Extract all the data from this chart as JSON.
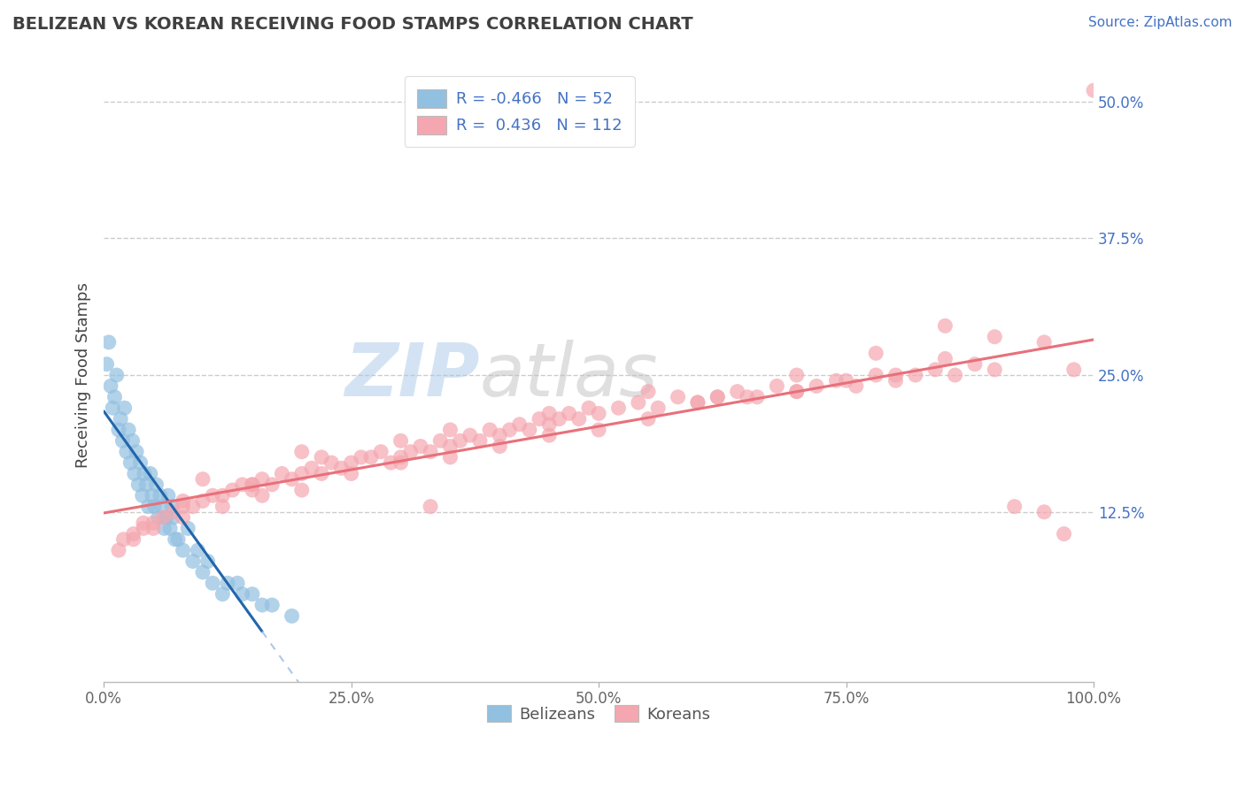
{
  "title": "BELIZEAN VS KOREAN RECEIVING FOOD STAMPS CORRELATION CHART",
  "source": "Source: ZipAtlas.com",
  "ylabel": "Receiving Food Stamps",
  "xlim": [
    0,
    100
  ],
  "ylim": [
    -3,
    53
  ],
  "ytick_vals": [
    12.5,
    25.0,
    37.5,
    50.0
  ],
  "ytick_labels": [
    "12.5%",
    "25.0%",
    "37.5%",
    "50.0%"
  ],
  "xtick_vals": [
    0,
    25,
    50,
    75,
    100
  ],
  "xtick_labels": [
    "0.0%",
    "25.0%",
    "50.0%",
    "75.0%",
    "100.0%"
  ],
  "belizean_color": "#92c0e0",
  "korean_color": "#f4a7b0",
  "belizean_R": -0.466,
  "belizean_N": 52,
  "korean_R": 0.436,
  "korean_N": 112,
  "regression_blue_color": "#2166ac",
  "regression_pink_color": "#e8707a",
  "regression_blue_dashed_color": "#aec7e8",
  "watermark_text": "ZIPatlas",
  "grid_color": "#cccccc",
  "background_color": "#ffffff",
  "title_color": "#404040",
  "source_color": "#4472c4",
  "legend_label_blue": "Belizeans",
  "legend_label_pink": "Koreans",
  "belizean_x": [
    0.3,
    0.5,
    0.7,
    0.9,
    1.1,
    1.3,
    1.5,
    1.7,
    1.9,
    2.1,
    2.3,
    2.5,
    2.7,
    2.9,
    3.1,
    3.3,
    3.5,
    3.7,
    3.9,
    4.1,
    4.3,
    4.5,
    4.7,
    4.9,
    5.1,
    5.3,
    5.5,
    5.7,
    5.9,
    6.1,
    6.3,
    6.5,
    6.7,
    6.9,
    7.5,
    8.0,
    9.0,
    10.0,
    11.0,
    12.0,
    13.5,
    15.0,
    17.0,
    19.0,
    7.0,
    7.2,
    8.5,
    9.5,
    10.5,
    12.5,
    14.0,
    16.0
  ],
  "belizean_y": [
    26,
    28,
    24,
    22,
    23,
    25,
    20,
    21,
    19,
    22,
    18,
    20,
    17,
    19,
    16,
    18,
    15,
    17,
    14,
    16,
    15,
    13,
    16,
    14,
    13,
    15,
    12,
    14,
    13,
    11,
    12,
    14,
    11,
    13,
    10,
    9,
    8,
    7,
    6,
    5,
    6,
    5,
    4,
    3,
    12,
    10,
    11,
    9,
    8,
    6,
    5,
    4
  ],
  "korean_x": [
    1.5,
    2.0,
    3.0,
    4.0,
    5.0,
    6.0,
    7.0,
    8.0,
    9.0,
    10.0,
    11.0,
    12.0,
    13.0,
    14.0,
    15.0,
    16.0,
    17.0,
    18.0,
    19.0,
    20.0,
    21.0,
    22.0,
    23.0,
    24.0,
    25.0,
    26.0,
    27.0,
    28.0,
    29.0,
    30.0,
    31.0,
    32.0,
    33.0,
    34.0,
    35.0,
    36.0,
    37.0,
    38.0,
    39.0,
    40.0,
    41.0,
    42.0,
    43.0,
    44.0,
    45.0,
    46.0,
    47.0,
    48.0,
    49.0,
    50.0,
    52.0,
    54.0,
    56.0,
    58.0,
    60.0,
    62.0,
    64.0,
    66.0,
    68.0,
    70.0,
    72.0,
    74.0,
    76.0,
    78.0,
    80.0,
    82.0,
    84.0,
    86.0,
    88.0,
    90.0,
    95.0,
    98.0,
    3.0,
    5.0,
    8.0,
    12.0,
    16.0,
    20.0,
    25.0,
    30.0,
    35.0,
    40.0,
    45.0,
    50.0,
    55.0,
    60.0,
    65.0,
    70.0,
    75.0,
    80.0,
    85.0,
    90.0,
    95.0,
    100.0,
    10.0,
    15.0,
    20.0,
    30.0,
    35.0,
    45.0,
    55.0,
    62.0,
    70.0,
    78.0,
    85.0,
    92.0,
    97.0,
    4.0,
    8.0,
    15.0,
    22.0,
    33.0
  ],
  "korean_y": [
    9.0,
    10.0,
    10.5,
    11.0,
    11.5,
    12.0,
    12.5,
    13.0,
    13.0,
    13.5,
    14.0,
    14.0,
    14.5,
    15.0,
    14.5,
    15.5,
    15.0,
    16.0,
    15.5,
    16.0,
    16.5,
    16.0,
    17.0,
    16.5,
    17.0,
    17.5,
    17.5,
    18.0,
    17.0,
    17.5,
    18.0,
    18.5,
    18.0,
    19.0,
    18.5,
    19.0,
    19.5,
    19.0,
    20.0,
    19.5,
    20.0,
    20.5,
    20.0,
    21.0,
    20.5,
    21.0,
    21.5,
    21.0,
    22.0,
    21.5,
    22.0,
    22.5,
    22.0,
    23.0,
    22.5,
    23.0,
    23.5,
    23.0,
    24.0,
    23.5,
    24.0,
    24.5,
    24.0,
    25.0,
    24.5,
    25.0,
    25.5,
    25.0,
    26.0,
    25.5,
    28.0,
    25.5,
    10.0,
    11.0,
    12.0,
    13.0,
    14.0,
    14.5,
    16.0,
    17.0,
    17.5,
    18.5,
    19.5,
    20.0,
    21.0,
    22.5,
    23.0,
    23.5,
    24.5,
    25.0,
    26.5,
    28.5,
    12.5,
    51.0,
    15.5,
    15.0,
    18.0,
    19.0,
    20.0,
    21.5,
    23.5,
    23.0,
    25.0,
    27.0,
    29.5,
    13.0,
    10.5,
    11.5,
    13.5,
    15.0,
    17.5,
    13.0
  ]
}
